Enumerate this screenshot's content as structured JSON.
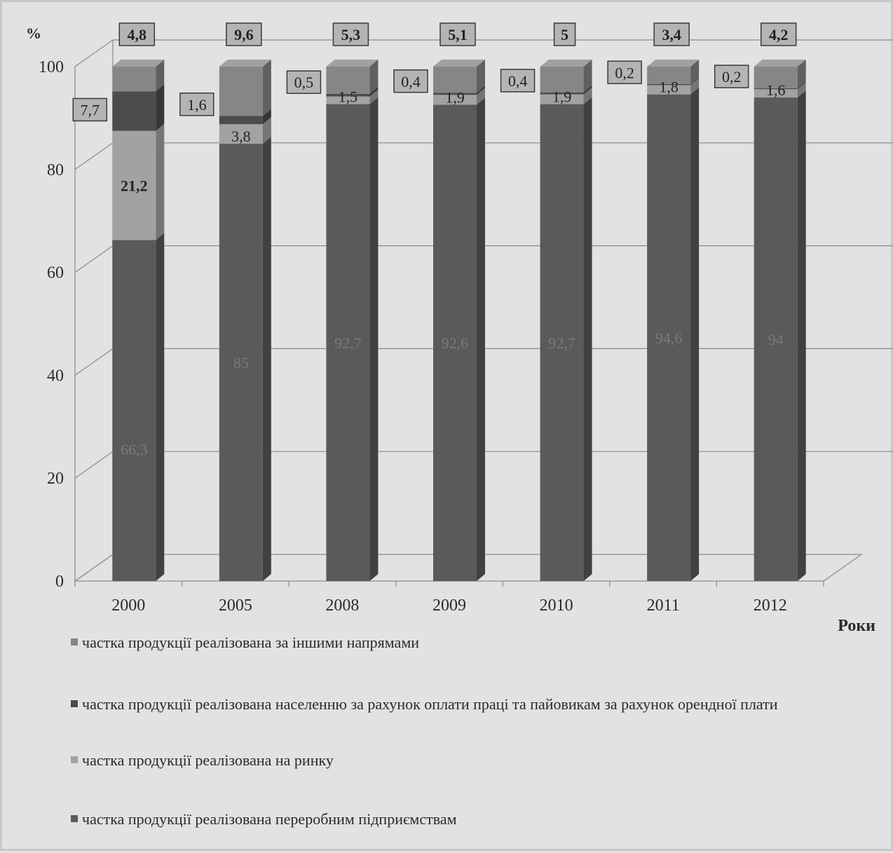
{
  "chart_data": {
    "type": "bar",
    "stacked": true,
    "title": "",
    "ylabel": "%",
    "xlabel": "Роки",
    "ylim": [
      0,
      100
    ],
    "yticks": [
      0,
      20,
      40,
      60,
      80,
      100
    ],
    "grid": true,
    "categories": [
      "2000",
      "2005",
      "2008",
      "2009",
      "2010",
      "2011",
      "2012"
    ],
    "series": [
      {
        "name": "частка продукції реалізована переробним підприємствам",
        "values": [
          66.3,
          85,
          92.7,
          92.6,
          92.7,
          94.6,
          94
        ],
        "labels": [
          "66,3",
          "85",
          "92,7",
          "92,6",
          "92,7",
          "94,6",
          "94"
        ],
        "color": "#5a5a5a"
      },
      {
        "name": "частка продукції реалізована на ринку",
        "values": [
          21.2,
          3.8,
          1.5,
          1.9,
          1.9,
          1.8,
          1.6
        ],
        "labels": [
          "21,2",
          "3,8",
          "1,5",
          "1,9",
          "1,9",
          "1,8",
          "1,6"
        ],
        "color": "#a2a2a2"
      },
      {
        "name": "частка продукції реалізована населенню за рахунок оплати праці та пайовикам за рахунок орендної плати",
        "values": [
          7.7,
          1.6,
          0.5,
          0.4,
          0.4,
          0.2,
          0.2
        ],
        "labels": [
          "7,7",
          "1,6",
          "0,5",
          "0,4",
          "0,4",
          "0,2",
          "0,2"
        ],
        "color": "#4c4c4c"
      },
      {
        "name": "частка продукції реалізована за іншими напрямами",
        "values": [
          4.8,
          9.6,
          5.3,
          5.1,
          5,
          3.4,
          4.2
        ],
        "labels": [
          "4,8",
          "9,6",
          "5,3",
          "5,1",
          "5",
          "3,4",
          "4,2"
        ],
        "color": "#868686"
      }
    ],
    "legend_position": "bottom",
    "legend_order": [
      3,
      2,
      1,
      0
    ]
  }
}
